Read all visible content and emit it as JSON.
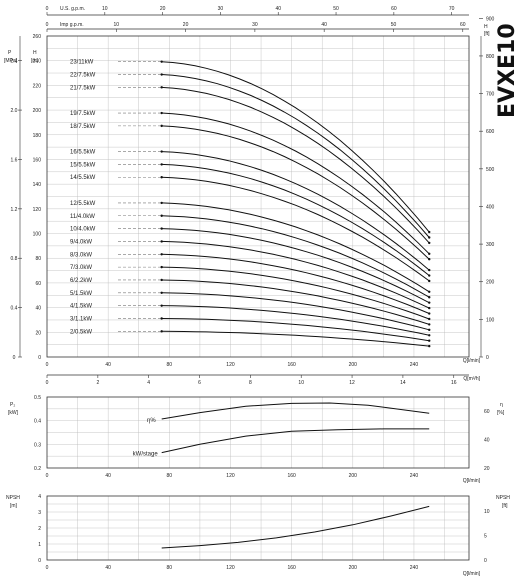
{
  "title": "EVXE10",
  "chart_data": [
    {
      "type": "line",
      "name": "performance",
      "flow_axes": {
        "us_gpm": {
          "label": "U.S. g.p.m.",
          "ticks": [
            0,
            10,
            20,
            30,
            40,
            50,
            60,
            70
          ],
          "range": [
            0,
            73
          ]
        },
        "imp_gpm": {
          "label": "Imp g.p.m.",
          "ticks": [
            0,
            10,
            20,
            30,
            40,
            50,
            60
          ],
          "range": [
            0,
            60.9
          ]
        },
        "m3h": {
          "label": "Q[m³/h]",
          "ticks": [
            0,
            2,
            4,
            6,
            8,
            10,
            12,
            14,
            16
          ],
          "range": [
            0,
            16.6
          ]
        },
        "lmin": {
          "label": "Q[l/min]",
          "ticks": [
            0,
            40,
            80,
            120,
            160,
            200,
            240
          ],
          "range": [
            0,
            276
          ]
        }
      },
      "left_axes": {
        "pressure": {
          "label": "P",
          "unit": "[MPa]",
          "ticks": [
            "0",
            "0.4",
            "0.8",
            "1.2",
            "1.6",
            "2.0",
            "2.4"
          ]
        },
        "head_m": {
          "label": "H",
          "unit": "[m]",
          "ticks": [
            0,
            20,
            40,
            60,
            80,
            100,
            120,
            140,
            160,
            180,
            200,
            220,
            240,
            260
          ],
          "range": [
            0,
            260
          ]
        }
      },
      "right_axis": {
        "label": "H",
        "unit": "[ft]",
        "ticks": [
          0,
          100,
          200,
          300,
          400,
          500,
          600,
          700,
          800,
          900
        ],
        "range": [
          0,
          853
        ]
      },
      "curves": [
        {
          "label": "2/0.5kW",
          "h_start": 20.8,
          "h_end": 8.8
        },
        {
          "label": "3/1.1kW",
          "h_start": 31.2,
          "h_end": 13.2
        },
        {
          "label": "4/1.5kW",
          "h_start": 41.6,
          "h_end": 17.6
        },
        {
          "label": "5/1.5kW",
          "h_start": 52.0,
          "h_end": 22.0
        },
        {
          "label": "6/2.2kW",
          "h_start": 62.4,
          "h_end": 26.4
        },
        {
          "label": "7/3.0kW",
          "h_start": 72.8,
          "h_end": 30.8
        },
        {
          "label": "8/3.0kW",
          "h_start": 83.2,
          "h_end": 35.2
        },
        {
          "label": "9/4.0kW",
          "h_start": 93.6,
          "h_end": 39.6
        },
        {
          "label": "10/4.0kW",
          "h_start": 104.0,
          "h_end": 44.0
        },
        {
          "label": "11/4.0kW",
          "h_start": 114.4,
          "h_end": 48.4
        },
        {
          "label": "12/5.5kW",
          "h_start": 124.8,
          "h_end": 52.8
        },
        {
          "label": "14/5.5kW",
          "h_start": 145.6,
          "h_end": 61.6
        },
        {
          "label": "15/5.5kW",
          "h_start": 156.0,
          "h_end": 66.0
        },
        {
          "label": "16/5.5kW",
          "h_start": 166.4,
          "h_end": 70.4
        },
        {
          "label": "18/7.5kW",
          "h_start": 187.2,
          "h_end": 79.2
        },
        {
          "label": "19/7.5kW",
          "h_start": 197.6,
          "h_end": 83.6
        },
        {
          "label": "21/7.5kW",
          "h_start": 218.4,
          "h_end": 92.4
        },
        {
          "label": "22/7.5kW",
          "h_start": 228.8,
          "h_end": 96.8
        },
        {
          "label": "23/11kW",
          "h_start": 239.2,
          "h_end": 101.2
        }
      ],
      "q_range": [
        75,
        250
      ]
    },
    {
      "type": "line",
      "name": "efficiency-power",
      "x_ticks": [
        0,
        40,
        80,
        120,
        160,
        200,
        240
      ],
      "x_label": "Q[l/min]",
      "left_axis": {
        "label": "P₂",
        "unit": "[kW]",
        "ticks": [
          "0.2",
          "0.3",
          "0.4",
          "0.5"
        ],
        "range": [
          0.2,
          0.5
        ]
      },
      "right_axis": {
        "label": "η",
        "unit": "[%]",
        "ticks": [
          20,
          40,
          60
        ],
        "range": [
          20,
          70
        ]
      },
      "series": [
        {
          "name": "η%",
          "x": [
            75,
            100,
            130,
            160,
            185,
            210,
            250
          ],
          "y": [
            54.5,
            59,
            63.5,
            65.5,
            65.8,
            64.2,
            58.5
          ]
        },
        {
          "name": "kW/stage",
          "x": [
            75,
            100,
            130,
            160,
            190,
            220,
            250
          ],
          "y": [
            0.265,
            0.3,
            0.335,
            0.355,
            0.362,
            0.365,
            0.365
          ]
        }
      ]
    },
    {
      "type": "line",
      "name": "npsh",
      "x_ticks": [
        0,
        40,
        80,
        120,
        160,
        200,
        240
      ],
      "x_label": "Q[l/min]",
      "left_axis": {
        "label": "NPSH",
        "unit": "[m]",
        "ticks": [
          0,
          1,
          2,
          3,
          4
        ],
        "range": [
          0,
          4
        ]
      },
      "right_axis": {
        "label": "NPSH",
        "unit": "[ft]",
        "ticks": [
          0,
          5,
          10
        ],
        "range": [
          0,
          13.1
        ]
      },
      "series": [
        {
          "name": "NPSH",
          "x": [
            75,
            100,
            125,
            150,
            175,
            200,
            225,
            250
          ],
          "y": [
            0.75,
            0.9,
            1.1,
            1.38,
            1.75,
            2.2,
            2.75,
            3.35
          ]
        }
      ]
    }
  ]
}
